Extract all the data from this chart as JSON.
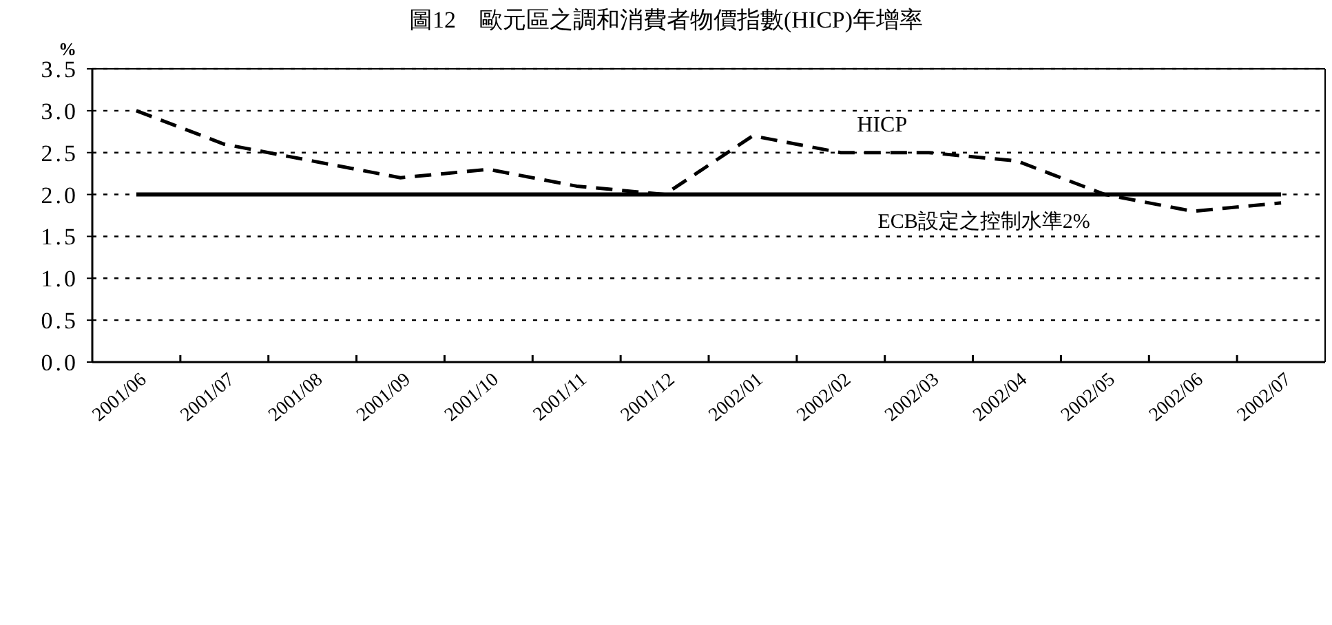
{
  "chart_data": {
    "type": "line",
    "title": "圖12　歐元區之調和消費者物價指數(HICP)年增率",
    "ylabel": "%",
    "categories": [
      "2001/06",
      "2001/07",
      "2001/08",
      "2001/09",
      "2001/10",
      "2001/11",
      "2001/12",
      "2002/01",
      "2002/02",
      "2002/03",
      "2002/04",
      "2002/05",
      "2002/06",
      "2002/07"
    ],
    "series": [
      {
        "name": "HICP",
        "color": "#000000",
        "values": [
          3.0,
          2.6,
          2.4,
          2.2,
          2.3,
          2.1,
          2.0,
          2.7,
          2.5,
          2.5,
          2.4,
          2.0,
          1.8,
          1.9
        ]
      }
    ],
    "ref_lines": [
      {
        "axis": "y",
        "value": 2.0,
        "label": "ECB設定之控制水準2%",
        "color": "#000000",
        "line_style": "solid"
      }
    ],
    "ylim": [
      0,
      3.5
    ],
    "yticks": [
      {
        "value": 0,
        "label": "0.0"
      },
      {
        "value": 0.5,
        "label": "0.5"
      },
      {
        "value": 1,
        "label": "1.0"
      },
      {
        "value": 1.5,
        "label": "1.5"
      },
      {
        "value": 2,
        "label": "2.0"
      },
      {
        "value": 2.5,
        "label": "2.5"
      },
      {
        "value": 3,
        "label": "3.0"
      },
      {
        "value": 3.5,
        "label": "3.5"
      }
    ],
    "grid": "y",
    "legend": false,
    "line_style": "dashed",
    "marker": "none"
  }
}
